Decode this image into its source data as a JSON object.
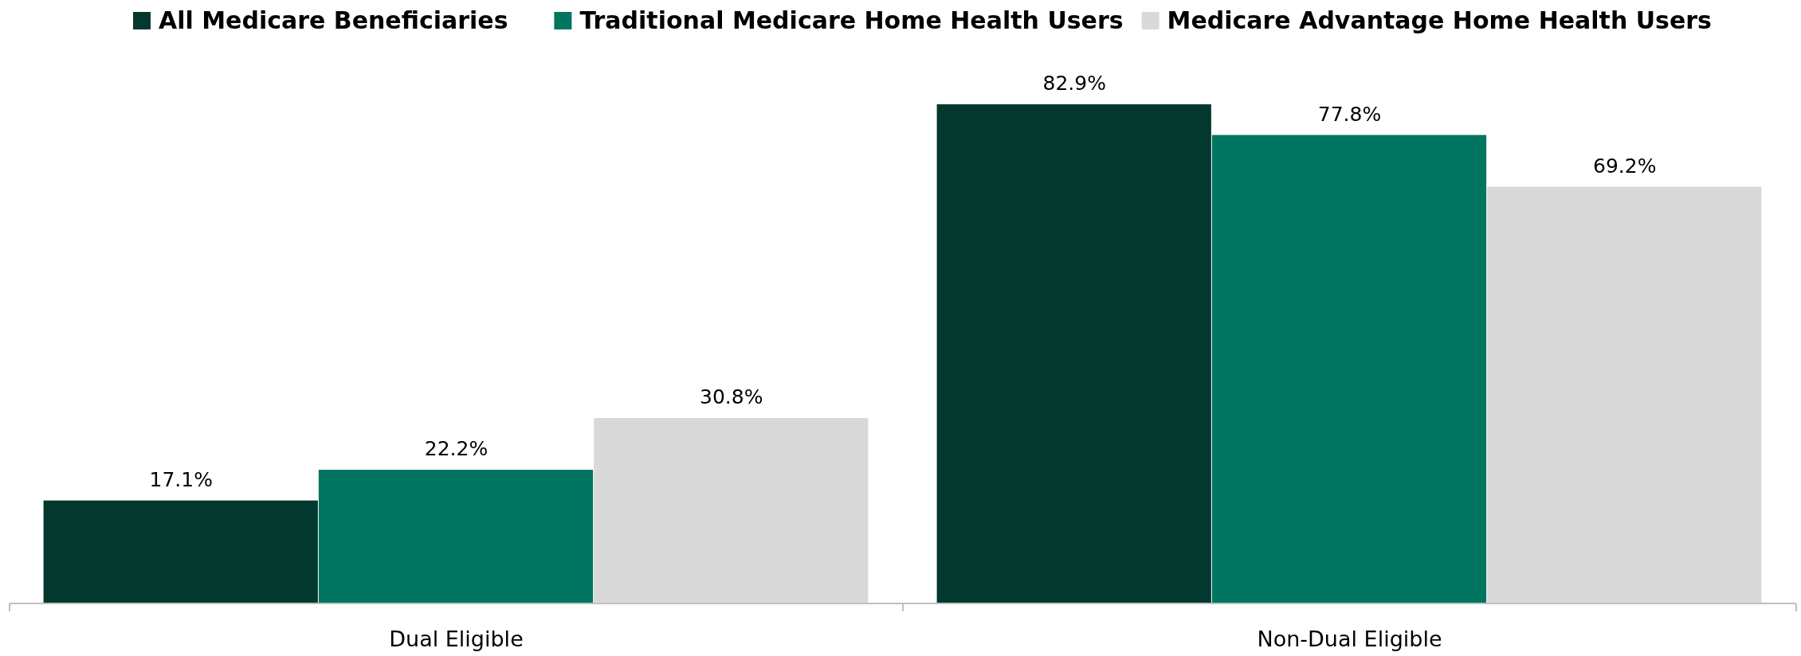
{
  "chart_data": {
    "type": "bar",
    "categories": [
      "Dual Eligible",
      "Non-Dual Eligible"
    ],
    "series": [
      {
        "name": "All Medicare Beneficiaries",
        "color": "#03382f",
        "values": [
          17.1,
          82.9
        ],
        "value_labels": [
          "17.1%",
          "82.9%"
        ]
      },
      {
        "name": "Traditional Medicare Home Health Users",
        "color": "#007560",
        "values": [
          22.2,
          77.8
        ],
        "value_labels": [
          "22.2%",
          "77.8%"
        ]
      },
      {
        "name": "Medicare Advantage Home Health Users",
        "color": "#d9d9d9",
        "values": [
          30.8,
          69.2
        ],
        "value_labels": [
          "30.8%",
          "69.2%"
        ]
      }
    ],
    "legend": "top"
  }
}
